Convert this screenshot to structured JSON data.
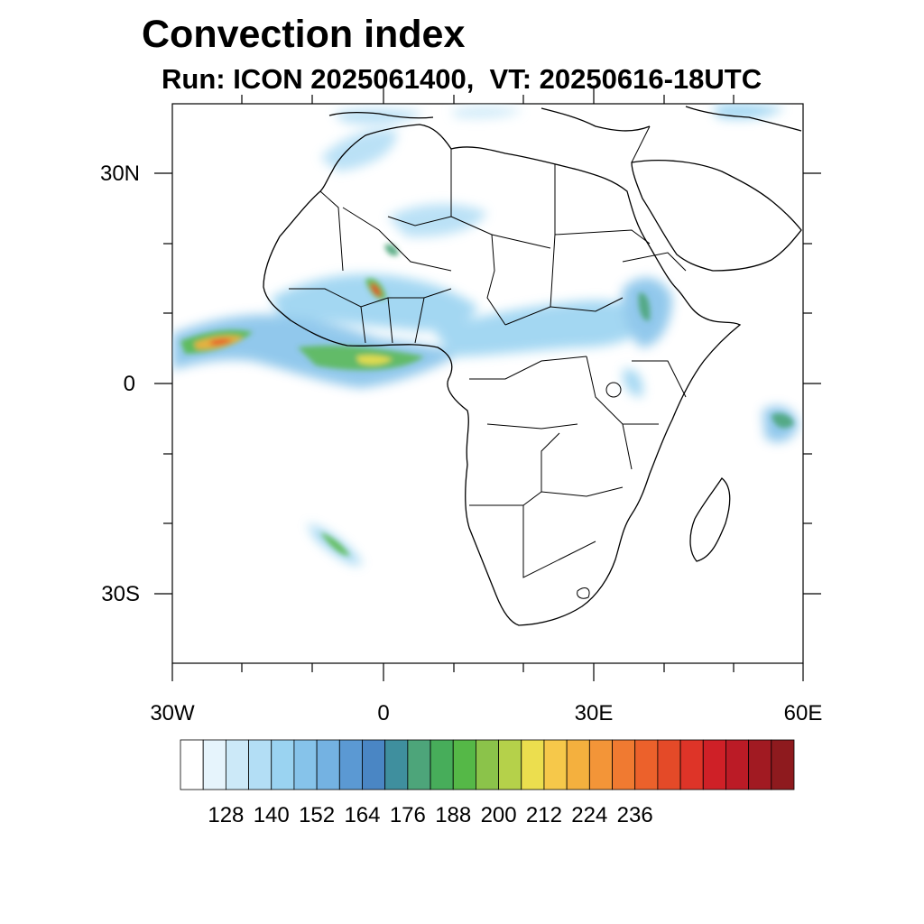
{
  "header": {
    "title": "Convection index",
    "subtitle": "Run: ICON 2025061400,  VT: 20250616-18UTC"
  },
  "axes": {
    "lon_ticks": [
      "30W",
      "0",
      "30E",
      "60E"
    ],
    "lat_ticks": [
      "30N",
      "0",
      "30S"
    ]
  },
  "map_extent": {
    "lon_min": -30,
    "lon_max": 60,
    "lat_min": -40,
    "lat_max": 40
  },
  "colorbar": {
    "labels": [
      "128",
      "140",
      "152",
      "164",
      "176",
      "188",
      "200",
      "212",
      "224",
      "236"
    ],
    "colors": [
      "#ffffff",
      "#e6f4fc",
      "#cce9f8",
      "#b3def5",
      "#9ad3f1",
      "#86c3ea",
      "#74b2e2",
      "#5b99d3",
      "#4a86c4",
      "#3f8f9e",
      "#4da57a",
      "#47ad5a",
      "#55b847",
      "#8bc34a",
      "#b5d14a",
      "#ecde4e",
      "#f6c84a",
      "#f4b03e",
      "#f39538",
      "#f07a31",
      "#ec612b",
      "#e44a28",
      "#de3428",
      "#cf2027",
      "#bb1b26",
      "#a11a22",
      "#8e1a1e"
    ]
  }
}
